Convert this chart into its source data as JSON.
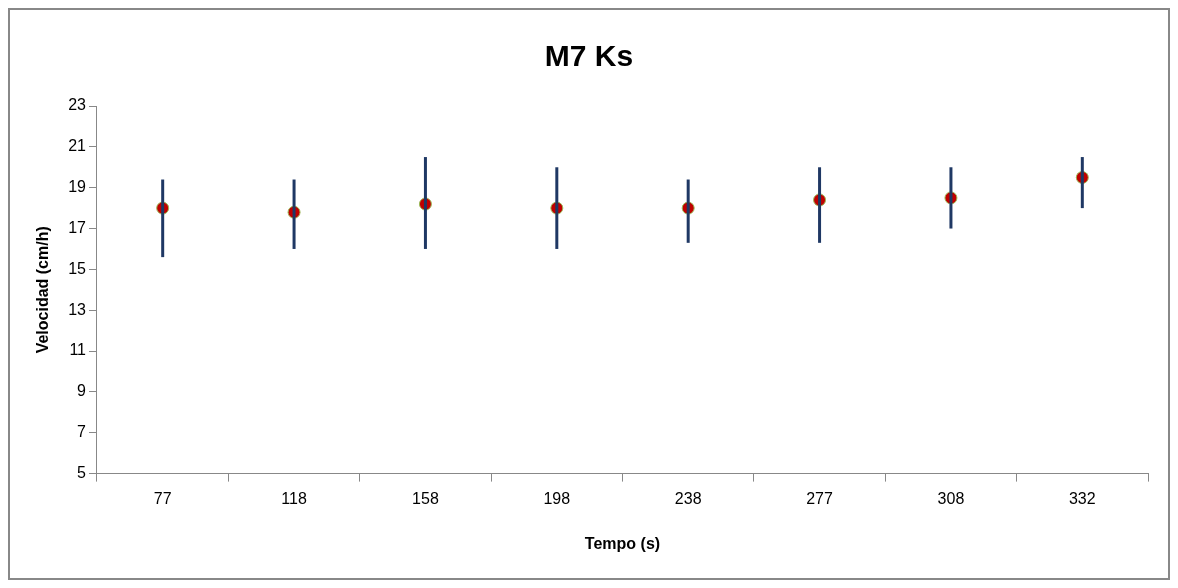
{
  "chart_data": {
    "type": "scatter",
    "title": "M7 Ks",
    "xlabel": "Tempo (s)",
    "ylabel": "Velocidad (cm/h)",
    "categories": [
      "77",
      "118",
      "158",
      "198",
      "238",
      "277",
      "308",
      "332"
    ],
    "series": [
      {
        "color": "#c00000",
        "values": [
          18.0,
          17.8,
          18.2,
          18.0,
          18.0,
          18.4,
          18.5,
          19.5
        ],
        "errors": [
          [
            15.6,
            19.4
          ],
          [
            16.0,
            19.4
          ],
          [
            16.0,
            20.5
          ],
          [
            16.0,
            20.0
          ],
          [
            16.3,
            19.4
          ],
          [
            16.3,
            20.0
          ],
          [
            17.0,
            20.0
          ],
          [
            18.0,
            20.5
          ]
        ]
      }
    ],
    "ylim": [
      5,
      23
    ],
    "yticks": [
      5,
      7,
      9,
      11,
      13,
      15,
      17,
      19,
      21,
      23
    ],
    "grid": false,
    "legend": false,
    "marker": "circle"
  }
}
